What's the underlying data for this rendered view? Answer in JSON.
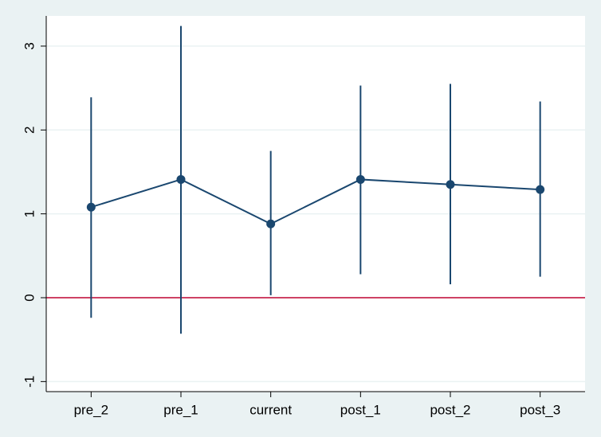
{
  "chart_data": {
    "type": "errorbar",
    "categories": [
      "pre_2",
      "pre_1",
      "current",
      "post_1",
      "post_2",
      "post_3"
    ],
    "series": [
      {
        "color": "#1a476f",
        "values": [
          1.08,
          1.41,
          0.88,
          1.41,
          1.35,
          1.29
        ],
        "lower": [
          -0.24,
          -0.43,
          0.03,
          0.28,
          0.16,
          0.25
        ],
        "upper": [
          2.39,
          3.24,
          1.75,
          2.53,
          2.55,
          2.34
        ]
      }
    ],
    "ylim": [
      -1.12,
      3.36
    ],
    "yticks": [
      -1,
      0,
      1,
      2,
      3
    ],
    "grid": true,
    "reference_line": {
      "value": 0,
      "color": "#c10534"
    }
  }
}
